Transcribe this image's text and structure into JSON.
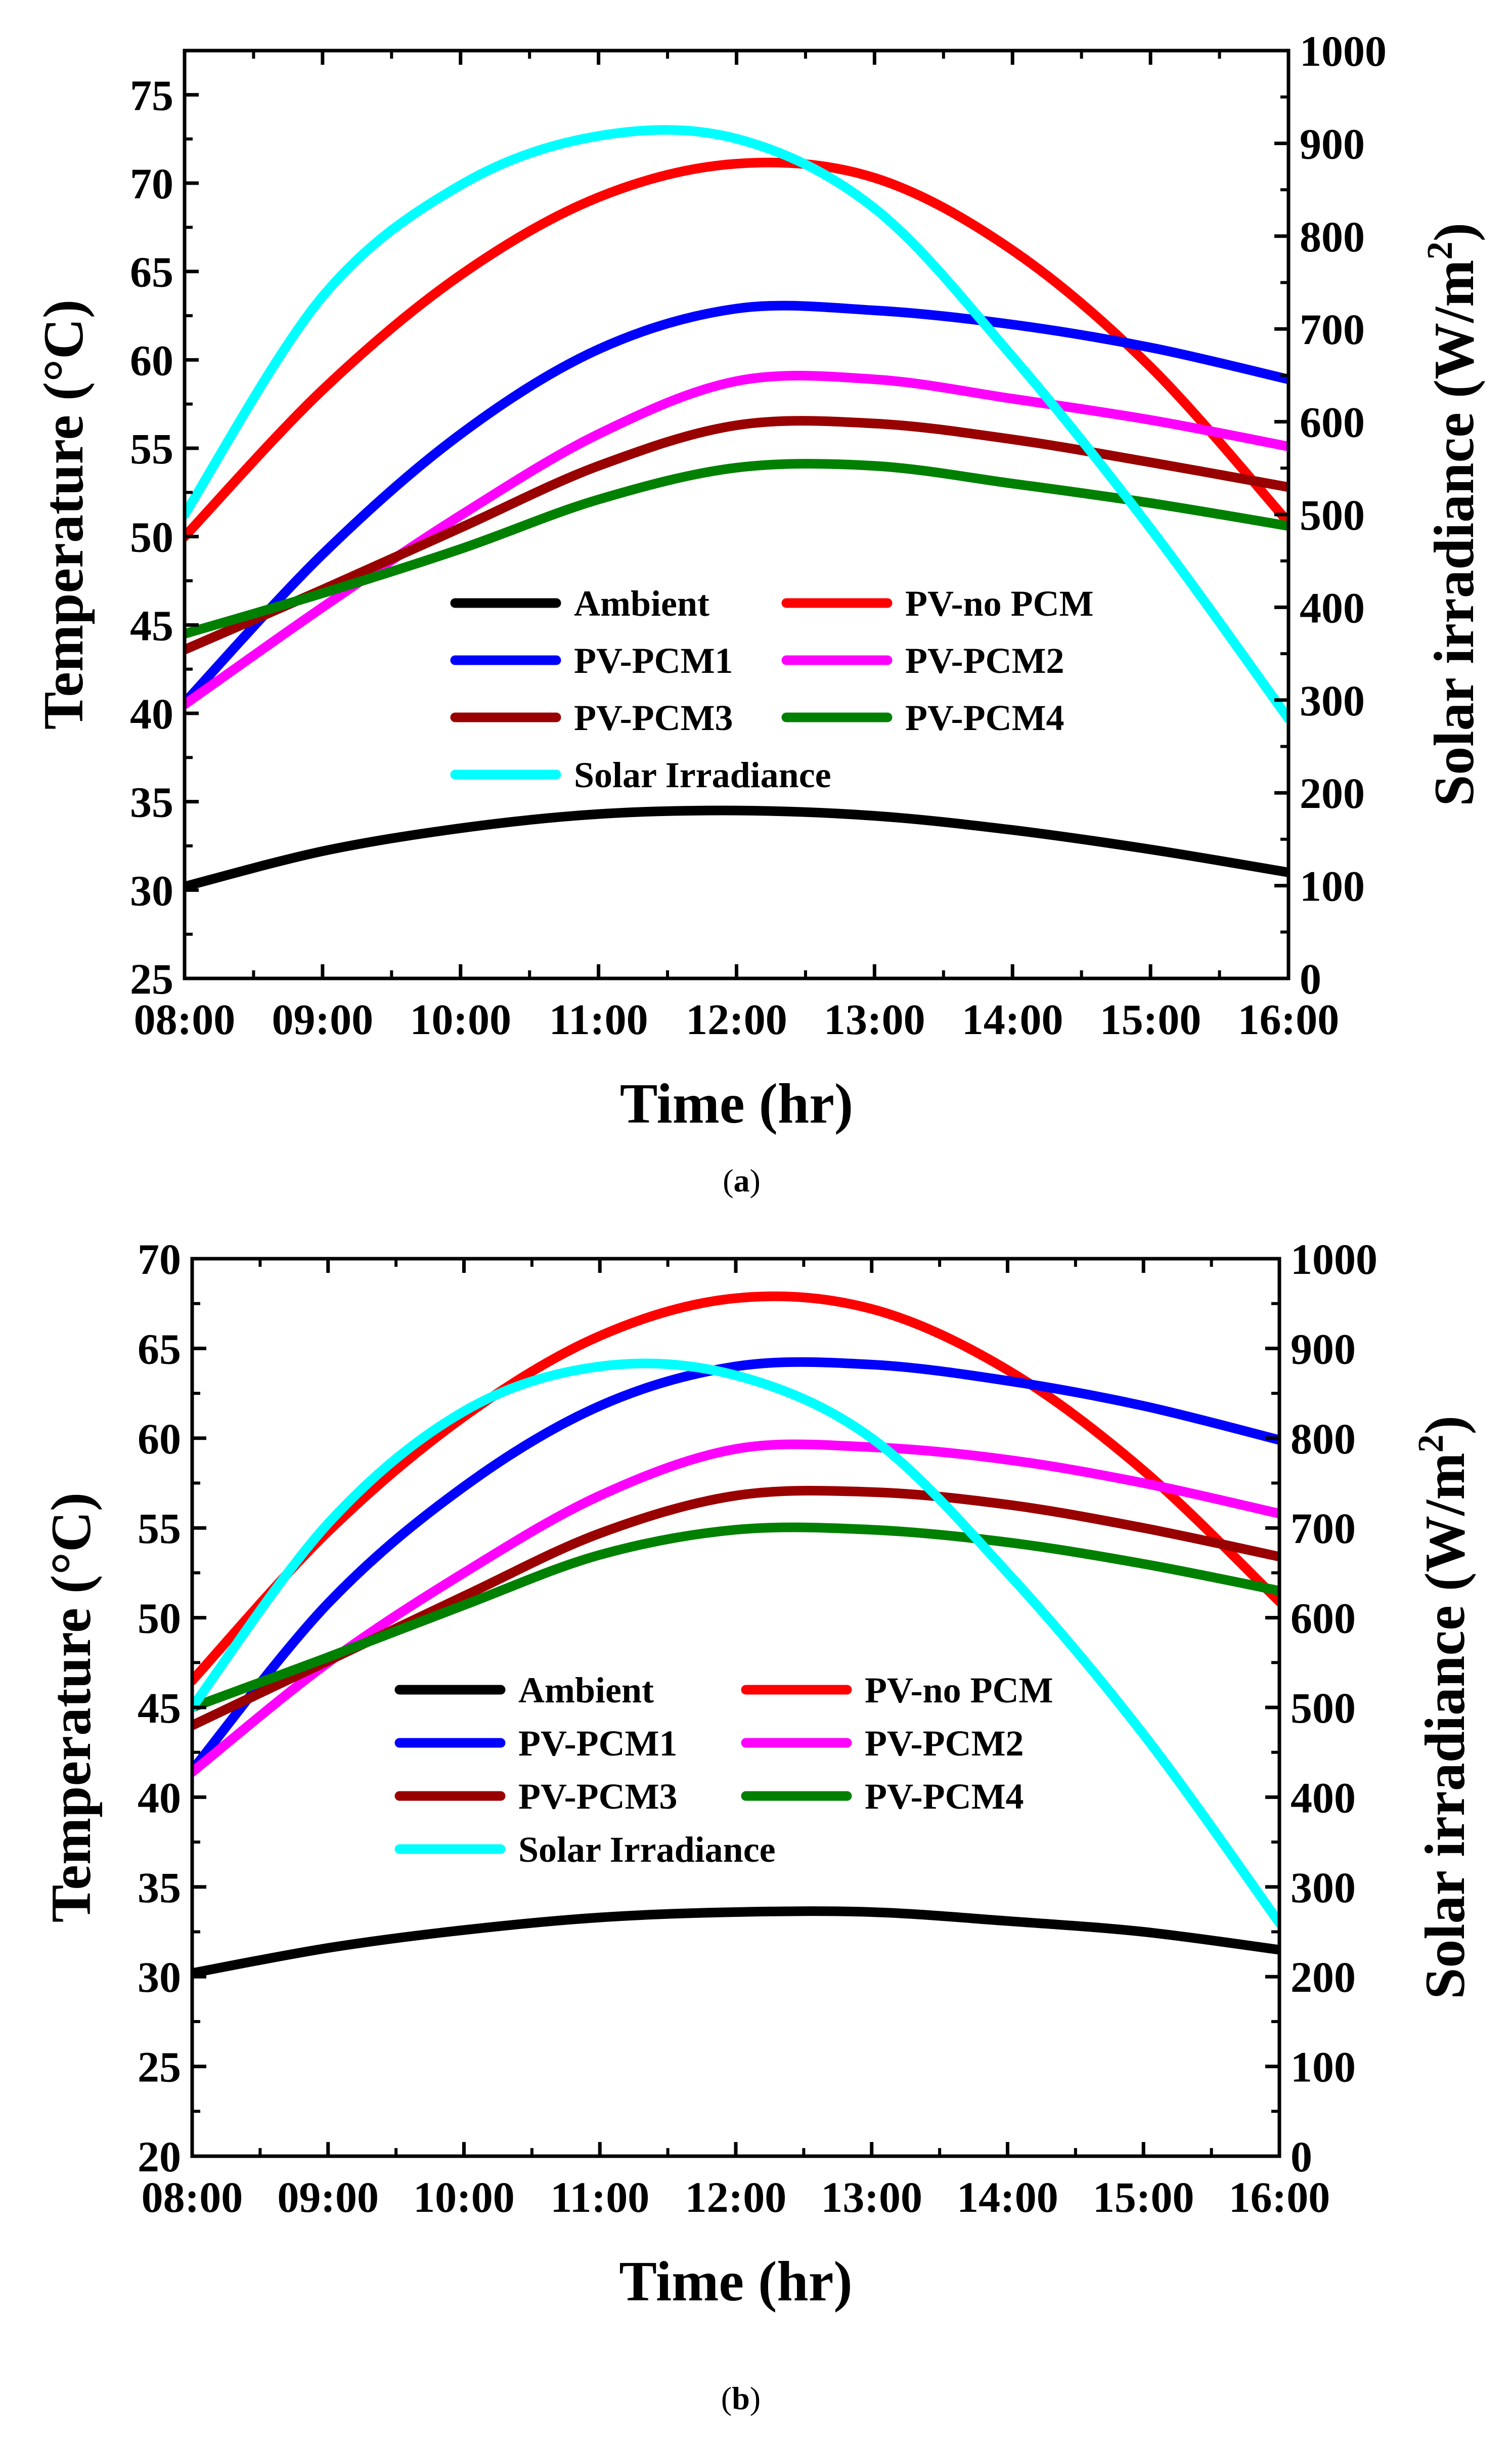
{
  "chart_data": [
    {
      "type": "line",
      "panel_label": "a",
      "x": [
        "08:00",
        "09:00",
        "10:00",
        "11:00",
        "12:00",
        "13:00",
        "14:00",
        "15:00",
        "16:00"
      ],
      "x_hours": [
        8,
        9,
        10,
        11,
        12,
        13,
        14,
        15,
        16
      ],
      "xlabel": "Time (hr)",
      "ylabel": "Temperature (°C)",
      "y2label_prefix": "Solar irradiance (W/m",
      "y2label_sup": "2",
      "y2label_suffix": ")",
      "xlim": [
        8,
        16
      ],
      "ylim": [
        25,
        77.5
      ],
      "y2lim": [
        0,
        1000
      ],
      "yticks": [
        "25",
        "30",
        "35",
        "40",
        "45",
        "50",
        "55",
        "60",
        "65",
        "70",
        "75"
      ],
      "y2ticks": [
        "0",
        "100",
        "200",
        "300",
        "400",
        "500",
        "600",
        "700",
        "800",
        "900",
        "1000"
      ],
      "series": [
        {
          "name": "Ambient",
          "color": "#000000",
          "axis": "left",
          "values": [
            30.2,
            32.2,
            33.5,
            34.3,
            34.5,
            34.2,
            33.4,
            32.3,
            31.0
          ]
        },
        {
          "name": "PV-no PCM",
          "color": "#ff0000",
          "axis": "left",
          "values": [
            50.0,
            58.3,
            64.8,
            69.2,
            71.1,
            70.3,
            66.2,
            59.6,
            50.8
          ]
        },
        {
          "name": "PV-PCM1",
          "color": "#0000ff",
          "axis": "left",
          "values": [
            40.6,
            49.0,
            55.8,
            60.6,
            62.9,
            62.8,
            62.0,
            60.7,
            58.9
          ]
        },
        {
          "name": "PV-PCM2",
          "color": "#ff00ff",
          "axis": "left",
          "values": [
            40.5,
            46.0,
            51.2,
            55.8,
            58.8,
            58.9,
            57.8,
            56.6,
            55.1
          ]
        },
        {
          "name": "PV-PCM3",
          "color": "#990000",
          "axis": "left",
          "values": [
            43.6,
            47.0,
            50.5,
            54.0,
            56.3,
            56.4,
            55.5,
            54.2,
            52.8
          ]
        },
        {
          "name": "PV-PCM4",
          "color": "#008000",
          "axis": "left",
          "values": [
            44.5,
            46.8,
            49.3,
            52.1,
            53.9,
            54.0,
            53.0,
            51.9,
            50.6
          ]
        },
        {
          "name": "Solar Irradiance",
          "color": "#00ffff",
          "axis": "right",
          "values": [
            500,
            735,
            855,
            908,
            905,
            830,
            670,
            485,
            280
          ]
        }
      ],
      "legend": [
        {
          "label": "Ambient",
          "color": "#000000"
        },
        {
          "label": "PV-no PCM",
          "color": "#ff0000"
        },
        {
          "label": "PV-PCM1",
          "color": "#0000ff"
        },
        {
          "label": "PV-PCM2",
          "color": "#ff00ff"
        },
        {
          "label": "PV-PCM3",
          "color": "#990000"
        },
        {
          "label": "PV-PCM4",
          "color": "#008000"
        },
        {
          "label": "Solar Irradiance",
          "color": "#00ffff"
        }
      ],
      "legend_position": "lower-center",
      "grid": false
    },
    {
      "type": "line",
      "panel_label": "b",
      "x": [
        "08:00",
        "09:00",
        "10:00",
        "11:00",
        "12:00",
        "13:00",
        "14:00",
        "15:00",
        "16:00"
      ],
      "x_hours": [
        8,
        9,
        10,
        11,
        12,
        13,
        14,
        15,
        16
      ],
      "xlabel": "Time (hr)",
      "ylabel": "Temperature (°C)",
      "y2label_prefix": "Solar irradiance (W/m",
      "y2label_sup": "2",
      "y2label_suffix": ")",
      "xlim": [
        8,
        16
      ],
      "ylim": [
        20,
        70
      ],
      "y2lim": [
        0,
        1000
      ],
      "yticks": [
        "20",
        "25",
        "30",
        "35",
        "40",
        "45",
        "50",
        "55",
        "60",
        "65",
        "70"
      ],
      "y2ticks": [
        "0",
        "100",
        "200",
        "300",
        "400",
        "500",
        "600",
        "700",
        "800",
        "900",
        "1000"
      ],
      "series": [
        {
          "name": "Ambient",
          "color": "#000000",
          "axis": "left",
          "values": [
            30.2,
            31.6,
            32.6,
            33.3,
            33.6,
            33.6,
            33.1,
            32.5,
            31.5
          ]
        },
        {
          "name": "PV-no PCM",
          "color": "#ff0000",
          "axis": "left",
          "values": [
            46.5,
            54.8,
            61.2,
            65.7,
            67.8,
            67.2,
            63.8,
            58.2,
            50.9
          ]
        },
        {
          "name": "PV-PCM1",
          "color": "#0000ff",
          "axis": "left",
          "values": [
            41.5,
            50.8,
            57.3,
            61.8,
            64.0,
            64.1,
            63.2,
            61.8,
            59.9
          ]
        },
        {
          "name": "PV-PCM2",
          "color": "#ff00ff",
          "axis": "left",
          "values": [
            41.4,
            47.5,
            52.5,
            56.8,
            59.4,
            59.5,
            58.8,
            57.5,
            55.8
          ]
        },
        {
          "name": "PV-PCM3",
          "color": "#990000",
          "axis": "left",
          "values": [
            44.0,
            47.6,
            51.2,
            54.7,
            56.8,
            57.0,
            56.3,
            55.0,
            53.4
          ]
        },
        {
          "name": "PV-PCM4",
          "color": "#008000",
          "axis": "left",
          "values": [
            45.0,
            47.8,
            50.7,
            53.5,
            54.9,
            54.9,
            54.2,
            53.0,
            51.5
          ]
        },
        {
          "name": "Solar Irradiance",
          "color": "#00ffff",
          "axis": "right",
          "values": [
            500,
            705,
            830,
            880,
            870,
            800,
            650,
            470,
            260
          ]
        }
      ],
      "legend": [
        {
          "label": "Ambient",
          "color": "#000000"
        },
        {
          "label": "PV-no PCM",
          "color": "#ff0000"
        },
        {
          "label": "PV-PCM1",
          "color": "#0000ff"
        },
        {
          "label": "PV-PCM2",
          "color": "#ff00ff"
        },
        {
          "label": "PV-PCM3",
          "color": "#990000"
        },
        {
          "label": "PV-PCM4",
          "color": "#008000"
        },
        {
          "label": "Solar Irradiance",
          "color": "#00ffff"
        }
      ],
      "legend_position": "lower-center",
      "grid": false
    }
  ]
}
